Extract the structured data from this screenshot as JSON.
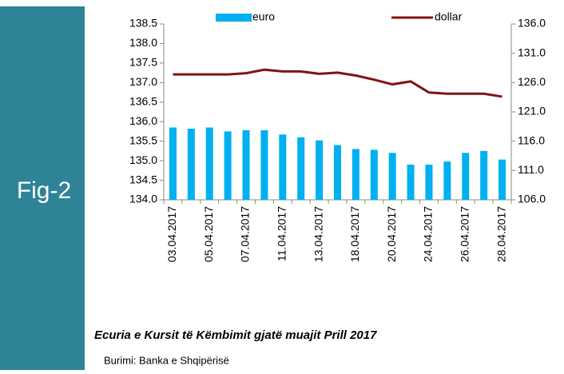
{
  "chart_data": {
    "type": "combo",
    "figure_label": "Fig-2",
    "title": "Ecuria e Kursit të Këmbimit gjatë muajit Prill 2017",
    "source": "Burimi: Banka e Shqipërisë",
    "categories": [
      "03.04.2017",
      null,
      "05.04.2017",
      null,
      "07.04.2017",
      null,
      "11.04.2017",
      null,
      "13.04.2017",
      null,
      "18.04.2017",
      null,
      "20.04.2017",
      null,
      "24.04.2017",
      null,
      "26.04.2017",
      null,
      "28.04.2017"
    ],
    "series": [
      {
        "name": "euro",
        "type": "bar",
        "color": "#00b0f0",
        "values": [
          135.85,
          135.82,
          135.85,
          135.75,
          135.78,
          135.78,
          135.67,
          135.6,
          135.52,
          135.4,
          135.3,
          135.28,
          135.2,
          134.9,
          134.9,
          134.98,
          135.2,
          135.25,
          135.03
        ]
      },
      {
        "name": "dollar",
        "type": "line",
        "axis": "y2",
        "color": "#7f1416",
        "values": [
          127.4,
          127.4,
          127.4,
          127.4,
          127.6,
          128.2,
          127.9,
          127.9,
          127.5,
          127.7,
          127.2,
          126.5,
          125.7,
          126.2,
          124.3,
          124.1,
          124.1,
          124.1,
          123.6
        ]
      }
    ],
    "ylim": [
      134,
      138.5
    ],
    "yticks": [
      {
        "value": 134,
        "label": "134.0"
      },
      134.5,
      {
        "value": 135,
        "label": "135.0"
      },
      135.5,
      {
        "value": 136,
        "label": "136.0"
      },
      136.5,
      {
        "value": 137,
        "label": "137.0"
      },
      137.5,
      {
        "value": 138,
        "label": "138.0"
      },
      138.5
    ],
    "y2lim": [
      106,
      136
    ],
    "y2ticks": [
      {
        "value": 106,
        "label": "106.0"
      },
      {
        "value": 111,
        "label": "111.0"
      },
      {
        "value": 116,
        "label": "116.0"
      },
      {
        "value": 121,
        "label": "121.0"
      },
      {
        "value": 126,
        "label": "126.0"
      },
      {
        "value": 131,
        "label": "131.0"
      },
      {
        "value": 136,
        "label": "136.0"
      }
    ]
  }
}
